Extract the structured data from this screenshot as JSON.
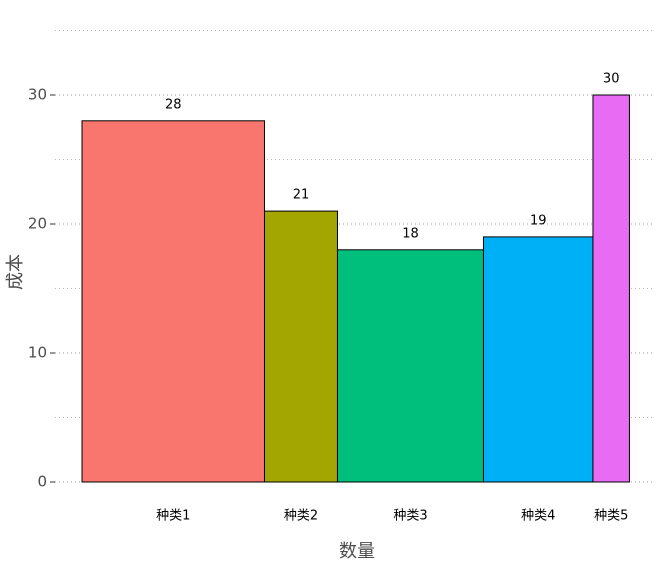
{
  "chart_data": {
    "type": "variable-width-bar",
    "x_label": "数量",
    "y_label": "成本",
    "categories": [
      "种类1",
      "种类2",
      "种类3",
      "种类4",
      "种类5"
    ],
    "values": [
      28,
      21,
      18,
      19,
      30
    ],
    "widths": [
      5,
      2,
      4,
      3,
      1
    ],
    "colors": [
      "#F8766D",
      "#A3A500",
      "#00BF7D",
      "#00B0F6",
      "#E76BF3"
    ],
    "xlim": [
      -0.74,
      15.7
    ],
    "ylim": [
      0,
      36.5
    ],
    "yticks": [
      0,
      10,
      20,
      30
    ],
    "minor_yticks": [
      5,
      15,
      25,
      35
    ],
    "grid": true
  }
}
